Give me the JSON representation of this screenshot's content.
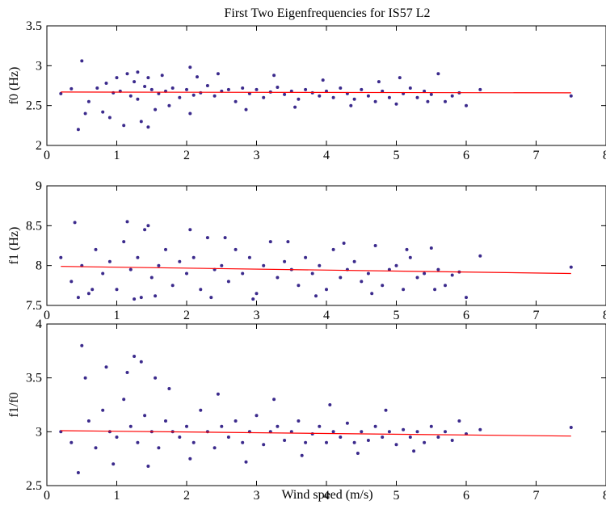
{
  "figure": {
    "title": "First Two Eigenfrequencies for IS57 L2",
    "xlabel": "Wind speed (m/s)"
  },
  "colors": {
    "scatter": "#3b2a8c",
    "fit_line": "#ff0000",
    "axes": "#000000",
    "background": "#ffffff"
  },
  "chart_data": [
    {
      "type": "scatter",
      "ylabel": "f0 (Hz)",
      "xlim": [
        0,
        8
      ],
      "ylim": [
        2,
        3.5
      ],
      "xticks": [
        "0",
        "1",
        "2",
        "3",
        "4",
        "5",
        "6",
        "7",
        "8"
      ],
      "yticks": [
        "2",
        "2.5",
        "3",
        "3.5"
      ],
      "grid": false,
      "series": [
        {
          "x": [
            0.2,
            0.5,
            0.35,
            0.6,
            0.72,
            0.85,
            0.95,
            1.05,
            1.1,
            1.2,
            1.25,
            1.3,
            1.4,
            1.45,
            1.5,
            1.6,
            1.7,
            1.8,
            1.9,
            2.0,
            2.05,
            2.1,
            2.2,
            2.3,
            2.4,
            2.5,
            2.6,
            2.7,
            2.8,
            2.9,
            3.0,
            3.1,
            3.2,
            3.3,
            3.4,
            3.5,
            3.6,
            3.7,
            3.8,
            3.9,
            4.0,
            4.1,
            4.2,
            4.3,
            4.4,
            4.5,
            4.6,
            4.7,
            4.8,
            4.9,
            5.0,
            5.1,
            5.2,
            5.3,
            5.4,
            5.5,
            5.6,
            5.7,
            5.8,
            5.9,
            6.0,
            6.2,
            7.5,
            0.45,
            0.55,
            0.9,
            1.0,
            1.15,
            1.35,
            1.55,
            1.65,
            1.75,
            0.8,
            1.3,
            1.45,
            2.05,
            2.15,
            2.45,
            2.85,
            3.25,
            3.55,
            3.95,
            4.35,
            4.75,
            5.05,
            5.45
          ],
          "y": [
            2.65,
            3.06,
            2.71,
            2.55,
            2.72,
            2.78,
            2.66,
            2.68,
            2.25,
            2.62,
            2.8,
            2.58,
            2.74,
            2.23,
            2.7,
            2.65,
            2.68,
            2.72,
            2.6,
            2.7,
            2.98,
            2.63,
            2.66,
            2.75,
            2.62,
            2.68,
            2.7,
            2.55,
            2.72,
            2.65,
            2.7,
            2.6,
            2.67,
            2.73,
            2.64,
            2.68,
            2.58,
            2.7,
            2.66,
            2.62,
            2.68,
            2.6,
            2.72,
            2.65,
            2.58,
            2.7,
            2.62,
            2.55,
            2.68,
            2.6,
            2.52,
            2.65,
            2.72,
            2.6,
            2.68,
            2.64,
            2.9,
            2.55,
            2.62,
            2.66,
            2.5,
            2.7,
            2.62,
            2.2,
            2.4,
            2.35,
            2.85,
            2.9,
            2.3,
            2.45,
            2.88,
            2.5,
            2.42,
            2.92,
            2.85,
            2.4,
            2.86,
            2.9,
            2.45,
            2.88,
            2.48,
            2.82,
            2.5,
            2.8,
            2.85,
            2.55
          ]
        }
      ],
      "fit_line": {
        "x": [
          0.2,
          7.5
        ],
        "y": [
          2.67,
          2.66
        ]
      }
    },
    {
      "type": "scatter",
      "ylabel": "f1 (Hz)",
      "xlim": [
        0,
        8
      ],
      "ylim": [
        7.5,
        9
      ],
      "xticks": [
        "0",
        "1",
        "2",
        "3",
        "4",
        "5",
        "6",
        "7",
        "8"
      ],
      "yticks": [
        "7.5",
        "8",
        "8.5",
        "9"
      ],
      "grid": false,
      "series": [
        {
          "x": [
            0.2,
            0.35,
            0.4,
            0.5,
            0.6,
            0.7,
            0.8,
            0.9,
            1.0,
            1.1,
            1.15,
            1.2,
            1.3,
            1.35,
            1.4,
            1.5,
            1.6,
            1.7,
            1.8,
            1.9,
            2.0,
            2.1,
            2.2,
            2.3,
            2.4,
            2.5,
            2.6,
            2.7,
            2.8,
            2.9,
            3.0,
            3.1,
            3.2,
            3.3,
            3.4,
            3.5,
            3.6,
            3.7,
            3.8,
            3.9,
            4.0,
            4.1,
            4.2,
            4.3,
            4.4,
            4.5,
            4.6,
            4.7,
            4.8,
            4.9,
            5.0,
            5.1,
            5.2,
            5.3,
            5.4,
            5.5,
            5.6,
            5.7,
            5.8,
            5.9,
            6.0,
            6.2,
            7.5,
            0.45,
            0.65,
            1.25,
            1.45,
            1.55,
            2.05,
            2.35,
            2.55,
            2.95,
            3.45,
            3.85,
            4.25,
            4.65,
            5.15,
            5.55
          ],
          "y": [
            8.1,
            7.8,
            8.54,
            8.0,
            7.65,
            8.2,
            7.9,
            8.05,
            7.7,
            8.3,
            8.55,
            7.95,
            8.1,
            7.6,
            8.45,
            7.85,
            8.0,
            8.2,
            7.75,
            8.05,
            7.9,
            8.1,
            7.7,
            8.35,
            7.95,
            8.0,
            7.8,
            8.2,
            7.9,
            8.1,
            7.65,
            8.0,
            8.3,
            7.85,
            8.05,
            7.95,
            7.75,
            8.1,
            7.9,
            8.0,
            7.7,
            8.2,
            7.85,
            7.95,
            8.05,
            7.8,
            7.9,
            8.25,
            7.75,
            7.95,
            8.0,
            7.7,
            8.1,
            7.85,
            7.9,
            8.22,
            7.95,
            7.75,
            7.88,
            7.92,
            7.6,
            8.12,
            7.98,
            7.6,
            7.7,
            7.58,
            8.5,
            7.62,
            8.45,
            7.6,
            8.35,
            7.58,
            8.3,
            7.62,
            8.28,
            7.65,
            8.2,
            7.7
          ]
        }
      ],
      "fit_line": {
        "x": [
          0.2,
          7.5
        ],
        "y": [
          7.99,
          7.9
        ]
      }
    },
    {
      "type": "scatter",
      "ylabel": "f1/f0",
      "xlim": [
        0,
        8
      ],
      "ylim": [
        2.5,
        4
      ],
      "xticks": [
        "0",
        "1",
        "2",
        "3",
        "4",
        "5",
        "6",
        "7",
        "8"
      ],
      "yticks": [
        "2.5",
        "3",
        "3.5",
        "4"
      ],
      "grid": false,
      "series": [
        {
          "x": [
            0.2,
            0.35,
            0.5,
            0.6,
            0.7,
            0.8,
            0.9,
            1.0,
            1.1,
            1.2,
            1.25,
            1.3,
            1.4,
            1.5,
            1.6,
            1.7,
            1.8,
            1.9,
            2.0,
            2.1,
            2.2,
            2.3,
            2.4,
            2.5,
            2.6,
            2.7,
            2.8,
            2.9,
            3.0,
            3.1,
            3.2,
            3.3,
            3.4,
            3.5,
            3.6,
            3.7,
            3.8,
            3.9,
            4.0,
            4.1,
            4.2,
            4.3,
            4.4,
            4.5,
            4.6,
            4.7,
            4.8,
            4.9,
            5.0,
            5.1,
            5.2,
            5.3,
            5.4,
            5.5,
            5.6,
            5.7,
            5.8,
            5.9,
            6.0,
            6.2,
            7.5,
            0.45,
            0.55,
            0.85,
            0.95,
            1.15,
            1.35,
            1.45,
            1.55,
            1.75,
            2.05,
            2.45,
            2.85,
            3.25,
            3.65,
            4.05,
            4.45,
            4.85,
            5.25
          ],
          "y": [
            3.0,
            2.9,
            3.8,
            3.1,
            2.85,
            3.2,
            3.0,
            2.95,
            3.3,
            3.05,
            3.7,
            2.9,
            3.15,
            3.0,
            2.85,
            3.1,
            3.0,
            2.95,
            3.05,
            2.9,
            3.2,
            3.0,
            2.85,
            3.05,
            2.95,
            3.1,
            2.9,
            3.0,
            3.15,
            2.88,
            3.0,
            3.05,
            2.92,
            3.0,
            3.1,
            2.9,
            2.98,
            3.05,
            2.9,
            3.0,
            2.95,
            3.08,
            2.9,
            3.0,
            2.92,
            3.05,
            2.95,
            3.0,
            2.88,
            3.02,
            2.95,
            3.0,
            2.9,
            3.05,
            2.95,
            3.0,
            2.92,
            3.1,
            2.98,
            3.02,
            3.04,
            2.62,
            3.5,
            3.6,
            2.7,
            3.55,
            3.65,
            2.68,
            3.5,
            3.4,
            2.75,
            3.35,
            2.72,
            3.3,
            2.78,
            3.25,
            2.8,
            3.2,
            2.82
          ]
        }
      ],
      "fit_line": {
        "x": [
          0.2,
          7.5
        ],
        "y": [
          3.01,
          2.96
        ]
      }
    }
  ]
}
